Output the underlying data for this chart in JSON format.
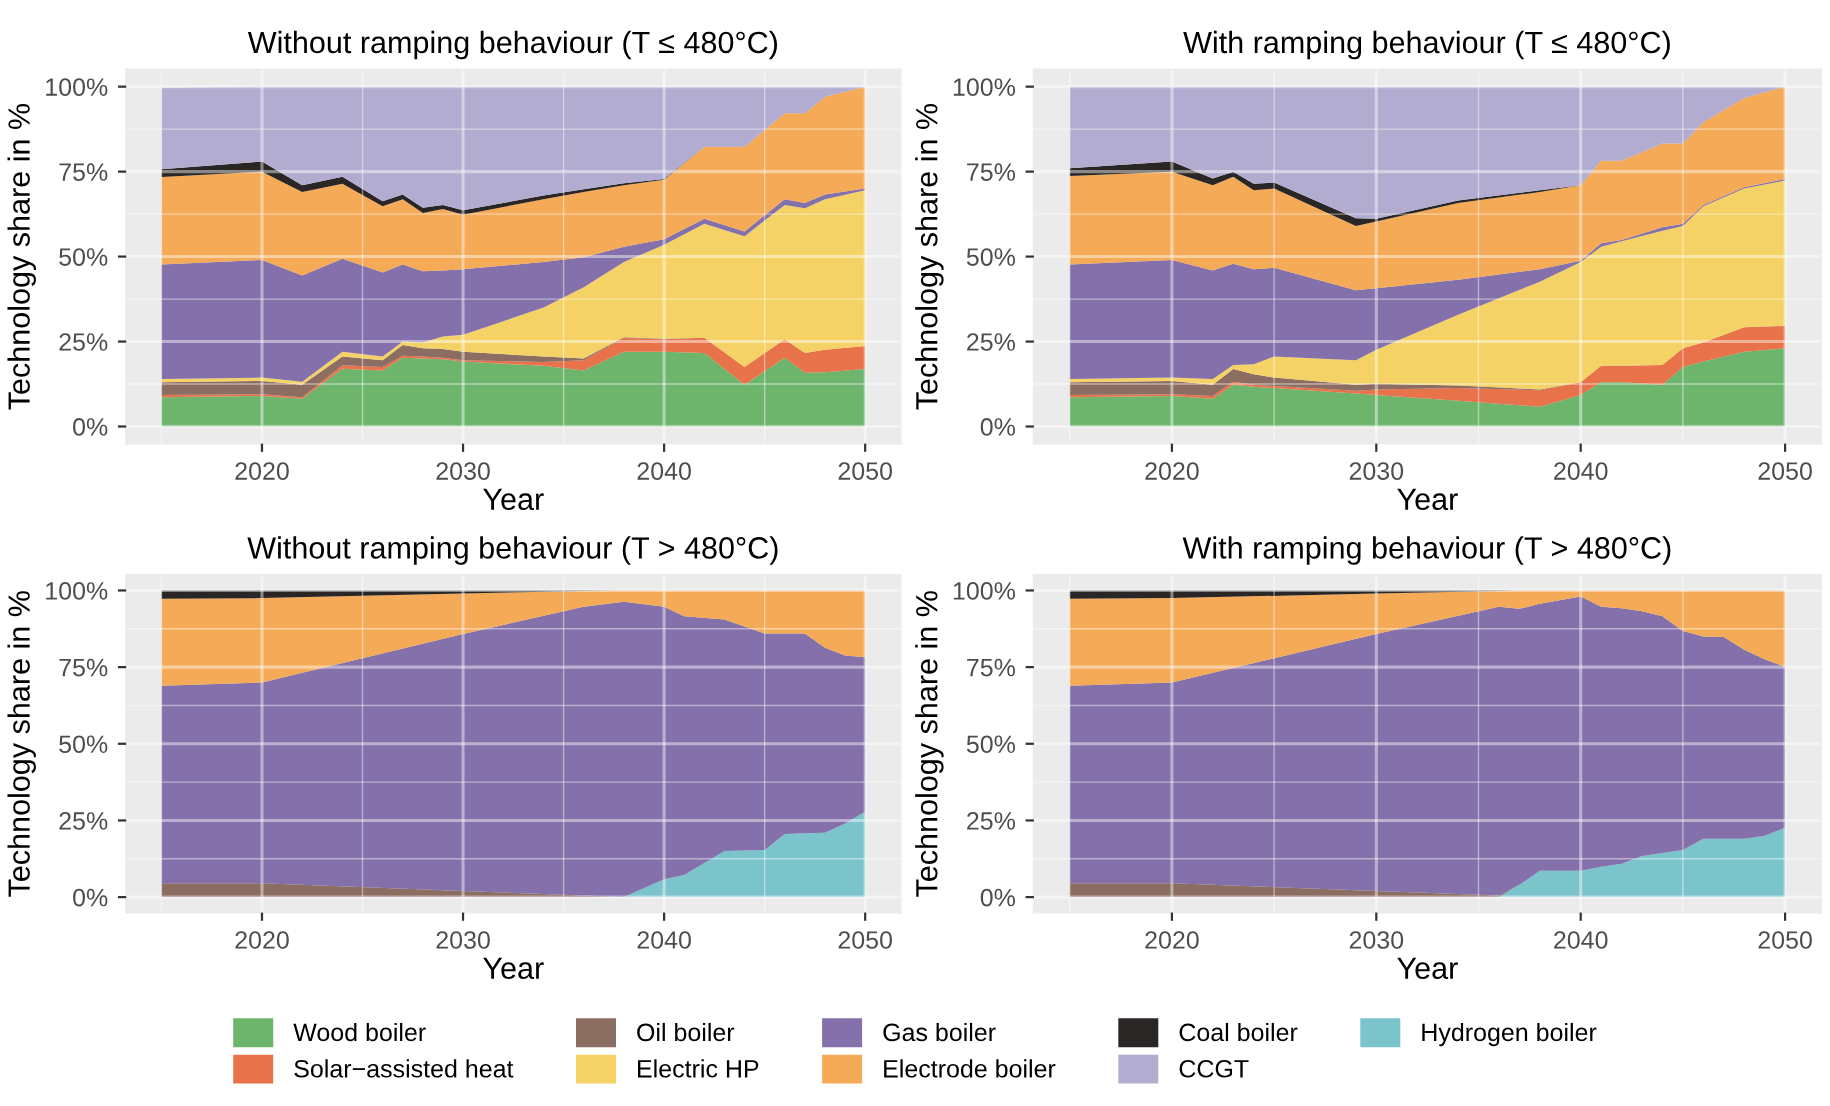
{
  "chart_data": [
    {
      "type": "area",
      "stacked": true,
      "title": "Without ramping behaviour (T ≤ 480°C)",
      "xlabel": "Year",
      "ylabel": "Technology share in %",
      "xlim": [
        2013.25,
        2051.75
      ],
      "ylim": [
        -5,
        105
      ],
      "xticks": [
        2020,
        2030,
        2040,
        2050
      ],
      "yticks": [
        {
          "value": 0,
          "label": "0%"
        },
        {
          "value": 25,
          "label": "25%"
        },
        {
          "value": 50,
          "label": "50%"
        },
        {
          "value": 75,
          "label": "75%"
        },
        {
          "value": 100,
          "label": "100%"
        }
      ],
      "grid": true,
      "legend": "bottom",
      "x": [
        2015,
        2020,
        2022,
        2024,
        2026,
        2027,
        2028,
        2029,
        2030,
        2034,
        2036,
        2038,
        2040,
        2042,
        2044,
        2046,
        2047,
        2048,
        2050
      ],
      "series": [
        {
          "name": "Wood boiler",
          "color": "#6db56d",
          "values": [
            8.6,
            9,
            8.2,
            17,
            16.5,
            20.2,
            20,
            19.8,
            19.1,
            17.9,
            16.5,
            22,
            22,
            21.6,
            12.3,
            20.2,
            15.8,
            16,
            16.9
          ]
        },
        {
          "name": "Solar−assisted heat",
          "color": "#e8734a",
          "values": [
            0.7,
            0.5,
            0.4,
            1,
            1,
            0.6,
            0.6,
            0.4,
            0.4,
            1.1,
            3,
            4.1,
            3.7,
            4.5,
            5.2,
            5.5,
            5.8,
            6.6,
            6.8
          ]
        },
        {
          "name": "Oil boiler",
          "color": "#8c6d62",
          "values": [
            3.7,
            3.9,
            3.7,
            2.6,
            2,
            3.2,
            2.4,
            2.6,
            2.5,
            1.6,
            0.5,
            0.2,
            0.1,
            0,
            null,
            null,
            null,
            null,
            null
          ]
        },
        {
          "name": "Electric HP",
          "color": "#f5d266",
          "values": [
            1,
            1,
            0.9,
            1.4,
            1.1,
            1,
            1.7,
            3.7,
            5,
            14.4,
            21,
            22.1,
            27.7,
            33.6,
            38.5,
            39.5,
            42.6,
            44.3,
            45.8
          ]
        },
        {
          "name": "Gas boiler",
          "color": "#8470aa",
          "values": [
            33.7,
            34.6,
            31.2,
            27.4,
            24.7,
            22.7,
            21,
            19.4,
            19.3,
            13.4,
            8.8,
            4.5,
            1.6,
            1.4,
            1.4,
            1.7,
            1.6,
            1.4,
            0.5
          ]
        },
        {
          "name": "Electrode boiler",
          "color": "#f4aa57",
          "values": [
            25.7,
            26,
            24.6,
            22,
            19.5,
            19.2,
            17.1,
            18.1,
            16,
            18.5,
            19.2,
            18.1,
            17.5,
            21.2,
            24.9,
            25.3,
            26.4,
            28.7,
            30
          ]
        },
        {
          "name": "Coal boiler",
          "color": "#2b2626",
          "values": [
            2.3,
            3,
            2,
            2.1,
            1.5,
            1.4,
            1.6,
            1.2,
            1.3,
            1.1,
            0.8,
            0.6,
            0.2,
            0,
            null,
            null,
            null,
            null,
            null
          ]
        },
        {
          "name": "CCGT",
          "color": "#b1acd0",
          "values": [
            24,
            22,
            29,
            26.5,
            33.7,
            31.7,
            35.6,
            34.8,
            36.4,
            32,
            30.2,
            28.4,
            27.2,
            17.7,
            17.7,
            7.8,
            7.8,
            3,
            0
          ]
        }
      ]
    },
    {
      "type": "area",
      "stacked": true,
      "title": "With ramping behaviour (T ≤ 480°C)",
      "xlabel": "Year",
      "ylabel": "Technology share in %",
      "xlim": [
        2013.25,
        2051.75
      ],
      "ylim": [
        -5,
        105
      ],
      "xticks": [
        2020,
        2030,
        2040,
        2050
      ],
      "yticks": [
        {
          "value": 0,
          "label": "0%"
        },
        {
          "value": 25,
          "label": "25%"
        },
        {
          "value": 50,
          "label": "50%"
        },
        {
          "value": 75,
          "label": "75%"
        },
        {
          "value": 100,
          "label": "100%"
        }
      ],
      "grid": true,
      "legend": "bottom",
      "x": [
        2015,
        2020,
        2022,
        2023,
        2024,
        2025,
        2029,
        2030,
        2034,
        2038,
        2040,
        2041,
        2042,
        2044,
        2045,
        2046,
        2048,
        2050
      ],
      "series": [
        {
          "name": "Wood boiler",
          "color": "#6db56d",
          "values": [
            8.6,
            9,
            8.2,
            12.3,
            11.7,
            11.3,
            9.7,
            9.3,
            7.6,
            5.8,
            9.3,
            13,
            13,
            12.3,
            17.5,
            19.1,
            22,
            23
          ]
        },
        {
          "name": "Solar−assisted heat",
          "color": "#e8734a",
          "values": [
            0.7,
            0.5,
            0.8,
            0.9,
            0.6,
            0.6,
            0.8,
            1.6,
            3.7,
            4.9,
            3.7,
            4.9,
            4.9,
            5.8,
            5.5,
            5.6,
            7.2,
            6.6
          ]
        },
        {
          "name": "Oil boiler",
          "color": "#8c6d62",
          "values": [
            3.7,
            3.9,
            3.3,
            3.7,
            3.1,
            2.5,
            1.8,
            1.7,
            0.8,
            0.2,
            0,
            null,
            null,
            null,
            null,
            null,
            null,
            null
          ]
        },
        {
          "name": "Electric HP",
          "color": "#f5d266",
          "values": [
            1,
            1,
            1.7,
            1.2,
            2.9,
            6.2,
            7.2,
            10,
            20.8,
            31.7,
            35.4,
            35,
            36.6,
            39.5,
            36,
            40.1,
            40.8,
            42.8
          ]
        },
        {
          "name": "Gas boiler",
          "color": "#8470aa",
          "values": [
            33.7,
            34.6,
            31.9,
            29.8,
            28,
            26.1,
            20.6,
            18.1,
            10.3,
            3.7,
            0.4,
            1,
            0.4,
            1,
            0.7,
            0.4,
            0.4,
            0.4
          ]
        },
        {
          "name": "Electrode boiler",
          "color": "#f4aa57",
          "values": [
            26,
            26,
            25.1,
            25.6,
            23.2,
            23.3,
            18.9,
            19.6,
            22.6,
            22.7,
            22.2,
            24.3,
            23.3,
            24.7,
            23.6,
            24.3,
            26.3,
            27.2
          ]
        },
        {
          "name": "Coal boiler",
          "color": "#2b2626",
          "values": [
            2.3,
            3,
            2,
            1.5,
            1.9,
            1.8,
            2.3,
            0.8,
            0.7,
            0.5,
            0,
            null,
            null,
            null,
            null,
            null,
            null,
            null
          ]
        },
        {
          "name": "CCGT",
          "color": "#b1acd0",
          "values": [
            24,
            22,
            27,
            25,
            28.6,
            28.2,
            38.7,
            38.9,
            33.5,
            30.5,
            29,
            21.8,
            21.8,
            16.7,
            16.7,
            10.5,
            3.3,
            0
          ]
        }
      ]
    },
    {
      "type": "area",
      "stacked": true,
      "title": "Without ramping behaviour (T > 480°C)",
      "xlabel": "Year",
      "ylabel": "Technology share in %",
      "xlim": [
        2013.25,
        2051.75
      ],
      "ylim": [
        -5,
        105
      ],
      "xticks": [
        2020,
        2030,
        2040,
        2050
      ],
      "yticks": [
        {
          "value": 0,
          "label": "0%"
        },
        {
          "value": 25,
          "label": "25%"
        },
        {
          "value": 50,
          "label": "50%"
        },
        {
          "value": 75,
          "label": "75%"
        },
        {
          "value": 100,
          "label": "100%"
        }
      ],
      "grid": true,
      "legend": "bottom",
      "x": [
        2015,
        2020,
        2030,
        2036,
        2038,
        2040,
        2041,
        2043,
        2045,
        2046,
        2047,
        2048,
        2049,
        2050
      ],
      "series": [
        {
          "name": "Hydrogen boiler",
          "color": "#7bc4cc",
          "values": [
            null,
            null,
            null,
            null,
            0,
            5.8,
            7.2,
            15,
            15.4,
            20.6,
            20.8,
            21,
            24,
            27.8
          ]
        },
        {
          "name": "Oil boiler",
          "color": "#8c6d62",
          "values": [
            4.5,
            4.5,
            2,
            0.5,
            0,
            null,
            null,
            null,
            null,
            null,
            null,
            null,
            null,
            null
          ]
        },
        {
          "name": "Gas boiler",
          "color": "#8470aa",
          "values": [
            64.4,
            65.5,
            83.8,
            94.2,
            96.3,
            88.9,
            84.4,
            75.5,
            70.6,
            65.4,
            65.2,
            60.3,
            54.8,
            50.4
          ]
        },
        {
          "name": "Electrode boiler",
          "color": "#f4aa57",
          "values": [
            28.4,
            27.5,
            13.2,
            5.1,
            3.7,
            5.3,
            8.4,
            9.5,
            14,
            14,
            14,
            18.7,
            21.2,
            21.8
          ]
        },
        {
          "name": "Coal boiler",
          "color": "#2b2626",
          "values": [
            2.7,
            2.5,
            1,
            0.2,
            0,
            null,
            null,
            null,
            null,
            null,
            null,
            null,
            null,
            null
          ]
        }
      ]
    },
    {
      "type": "area",
      "stacked": true,
      "title": "With ramping behaviour (T > 480°C)",
      "xlabel": "Year",
      "ylabel": "Technology share in %",
      "xlim": [
        2013.25,
        2051.75
      ],
      "ylim": [
        -5,
        105
      ],
      "xticks": [
        2020,
        2030,
        2040,
        2050
      ],
      "yticks": [
        {
          "value": 0,
          "label": "0%"
        },
        {
          "value": 25,
          "label": "25%"
        },
        {
          "value": 50,
          "label": "50%"
        },
        {
          "value": 75,
          "label": "75%"
        },
        {
          "value": 100,
          "label": "100%"
        }
      ],
      "grid": true,
      "legend": "bottom",
      "x": [
        2015,
        2020,
        2030,
        2036,
        2037,
        2038,
        2040,
        2041,
        2042,
        2043,
        2044,
        2045,
        2046,
        2047,
        2048,
        2049,
        2050
      ],
      "series": [
        {
          "name": "Hydrogen boiler",
          "color": "#7bc4cc",
          "values": [
            null,
            null,
            null,
            0,
            4,
            8.6,
            8.6,
            9.9,
            10.9,
            13.4,
            14.4,
            15.4,
            19,
            19,
            19,
            20,
            22.6
          ]
        },
        {
          "name": "Oil boiler",
          "color": "#8c6d62",
          "values": [
            4.5,
            4.5,
            2,
            0.5,
            0,
            null,
            null,
            null,
            null,
            null,
            null,
            null,
            null,
            null,
            null,
            null,
            null
          ]
        },
        {
          "name": "Gas boiler",
          "color": "#8470aa",
          "values": [
            64.4,
            65.5,
            83.8,
            94.2,
            90,
            87.1,
            89.4,
            84.8,
            83.3,
            79.8,
            77.2,
            71.4,
            66,
            65.8,
            61.7,
            57.6,
            52.5
          ]
        },
        {
          "name": "Electrode boiler",
          "color": "#f4aa57",
          "values": [
            28.4,
            27.5,
            13.2,
            5.1,
            6,
            4.3,
            2,
            5.3,
            5.8,
            6.8,
            8.4,
            13.2,
            15,
            15.2,
            19.3,
            22.4,
            24.9
          ]
        },
        {
          "name": "Coal boiler",
          "color": "#2b2626",
          "values": [
            2.7,
            2.5,
            1,
            0.2,
            0,
            null,
            null,
            null,
            null,
            null,
            null,
            null,
            null,
            null,
            null,
            null,
            null
          ]
        }
      ]
    }
  ]
}
